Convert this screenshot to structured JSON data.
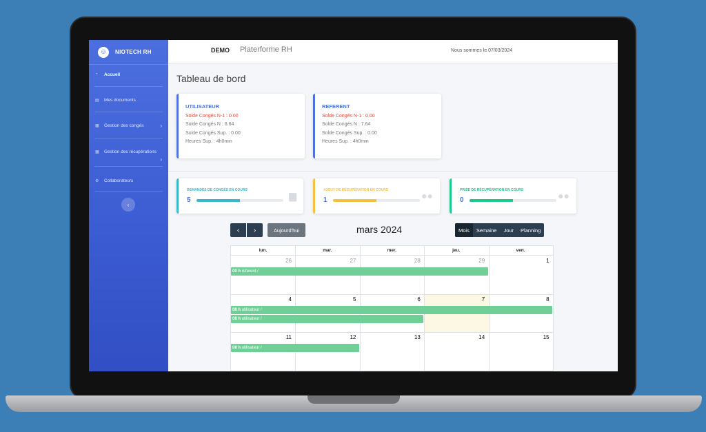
{
  "app": {
    "brand": "NIOTECH RH",
    "demo": "DEMO",
    "platform": "Platerforme RH",
    "date_text": "Nous sommes le 07/03/2024"
  },
  "sidebar": {
    "items": [
      {
        "label": "Accueil",
        "icon": "dashboard-icon"
      },
      {
        "label": "Mes documents",
        "icon": "document-icon"
      },
      {
        "label": "Gestion des congés",
        "icon": "calendar-icon"
      },
      {
        "label": "Gestion des récupérations",
        "icon": "calendar-icon"
      },
      {
        "label": "Collaborateurs",
        "icon": "gear-icon"
      }
    ],
    "collapse_glyph": "‹",
    "chevron_glyph": "›"
  },
  "page_title": "Tableau de bord",
  "balances": [
    {
      "title": "UTILISATEUR",
      "lines": [
        "Solde Congés N-1 : 0.00",
        "Solde Congés N : 6.64",
        "Solde Congés Sup. : 0.00",
        "Heures Sup. : 4h0min"
      ]
    },
    {
      "title": "REFERENT",
      "lines": [
        "Solde Congés N-1 : 0.00",
        "Solde Congés N : 7.64",
        "Solde Congés Sup. : 0.00",
        "Heures Sup. : 4h0min"
      ]
    }
  ],
  "stats": [
    {
      "title": "DEMANDES DE CONGÉS EN COURS",
      "value": "5",
      "progress": 0.5,
      "color": "#36b9cc",
      "icon": "calendar-icon"
    },
    {
      "title": "AJOUT DE RÉCUPÉRATION EN COURS",
      "value": "1",
      "progress": 0.5,
      "color": "#f6c23e",
      "icon": "users-icon"
    },
    {
      "title": "PRISE DE RÉCUPÉRATION EN COURS",
      "value": "0",
      "progress": 0.5,
      "color": "#1cc88a",
      "icon": "users-icon"
    }
  ],
  "calendar": {
    "prev": "‹",
    "next": "›",
    "today": "Aujourd'hui",
    "title": "mars 2024",
    "views": [
      "Mois",
      "Semaine",
      "Jour",
      "Planning"
    ],
    "active_view": "Mois",
    "day_names": [
      "lun.",
      "mar.",
      "mer.",
      "jeu.",
      "ven."
    ],
    "weeks": [
      [
        "26",
        "27",
        "28",
        "29",
        "1"
      ],
      [
        "4",
        "5",
        "6",
        "7",
        "8"
      ],
      [
        "11",
        "12",
        "13",
        "14",
        "15"
      ]
    ],
    "muted_first_week": 4,
    "today_date": "7",
    "events": [
      {
        "time": "00 h",
        "text": "referent /",
        "week": 0,
        "start": 0,
        "days": 4
      },
      {
        "time": "08 h",
        "text": "utilisateur /",
        "week": 1,
        "start": 0,
        "days": 5
      },
      {
        "time": "08 h",
        "text": "utilisateur /",
        "week": 1,
        "start": 0,
        "days": 3
      },
      {
        "time": "08 h",
        "text": "utilisateur /",
        "week": 2,
        "start": 0,
        "days": 2
      }
    ]
  }
}
